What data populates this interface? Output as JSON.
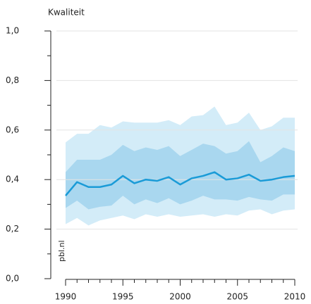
{
  "chart_data": {
    "type": "line",
    "title": "Kwaliteit",
    "watermark": "pbl.nl",
    "x": [
      1990,
      1991,
      1992,
      1993,
      1994,
      1995,
      1996,
      1997,
      1998,
      1999,
      2000,
      2001,
      2002,
      2003,
      2004,
      2005,
      2006,
      2007,
      2008,
      2009,
      2010
    ],
    "xlim": [
      1990,
      2010
    ],
    "xticks": [
      1990,
      1995,
      2000,
      2005,
      2010
    ],
    "xminorticks": [
      1991,
      1992,
      1993,
      1994,
      1996,
      1997,
      1998,
      1999,
      2001,
      2002,
      2003,
      2004,
      2006,
      2007,
      2008,
      2009
    ],
    "ylim": [
      0,
      1
    ],
    "yticks": [
      {
        "value": 0,
        "label": "0,0"
      },
      {
        "value": 0.2,
        "label": "0,2"
      },
      {
        "value": 0.4,
        "label": "0,4"
      },
      {
        "value": 0.6,
        "label": "0,6"
      },
      {
        "value": 0.8,
        "label": "0,8"
      },
      {
        "value": 1,
        "label": "1,0"
      }
    ],
    "yminorticks": [
      0.1,
      0.3,
      0.5,
      0.7,
      0.9
    ],
    "grid": true,
    "bands": [
      {
        "color": "#d3ecf8",
        "upper": [
          0.55,
          0.585,
          0.585,
          0.62,
          0.61,
          0.635,
          0.63,
          0.63,
          0.63,
          0.64,
          0.62,
          0.655,
          0.66,
          0.695,
          0.62,
          0.63,
          0.67,
          0.6,
          0.615,
          0.65,
          0.65
        ],
        "lower": [
          0.22,
          0.245,
          0.215,
          0.235,
          0.245,
          0.255,
          0.24,
          0.26,
          0.25,
          0.26,
          0.25,
          0.255,
          0.26,
          0.25,
          0.26,
          0.255,
          0.275,
          0.28,
          0.26,
          0.275,
          0.28
        ]
      },
      {
        "color": "#a9d7ef",
        "upper": [
          0.43,
          0.48,
          0.48,
          0.48,
          0.5,
          0.54,
          0.515,
          0.53,
          0.52,
          0.535,
          0.495,
          0.52,
          0.545,
          0.535,
          0.505,
          0.515,
          0.555,
          0.47,
          0.495,
          0.53,
          0.515
        ],
        "lower": [
          0.285,
          0.315,
          0.28,
          0.29,
          0.295,
          0.335,
          0.3,
          0.32,
          0.305,
          0.325,
          0.3,
          0.315,
          0.335,
          0.32,
          0.32,
          0.315,
          0.33,
          0.32,
          0.315,
          0.34,
          0.34
        ]
      }
    ],
    "series": [
      {
        "color": "#1a9bd7",
        "values": [
          0.335,
          0.39,
          0.37,
          0.37,
          0.38,
          0.415,
          0.385,
          0.4,
          0.395,
          0.41,
          0.38,
          0.405,
          0.415,
          0.43,
          0.4,
          0.405,
          0.42,
          0.395,
          0.4,
          0.41,
          0.415
        ]
      }
    ]
  }
}
